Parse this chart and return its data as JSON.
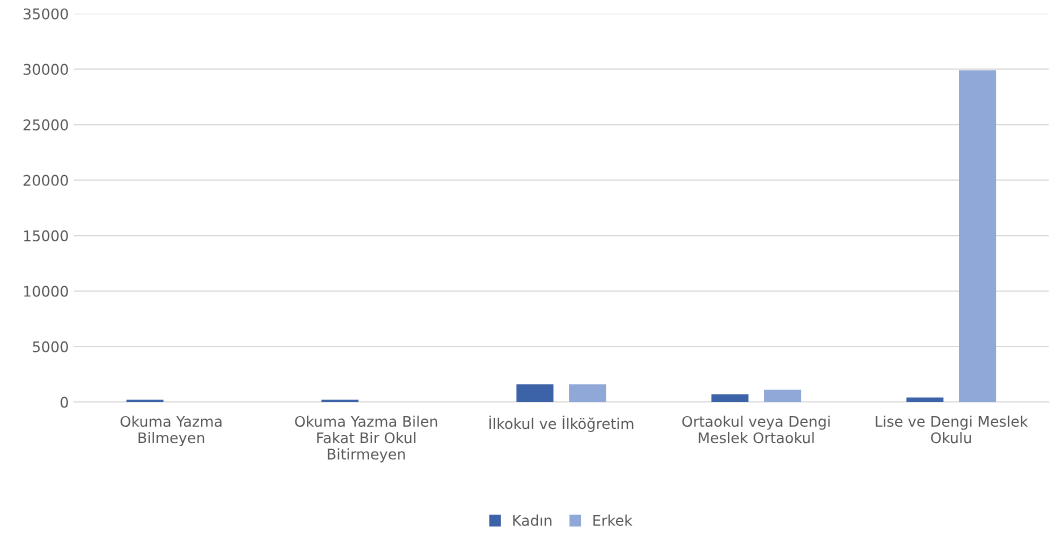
{
  "chart_data": {
    "type": "bar",
    "categories": [
      "Okuma Yazma Bilmeyen",
      "Okuma Yazma Bilen Fakat Bir Okul Bitirmeyen",
      "İlkokul ve İlköğretim",
      "Ortaokul veya Dengi Meslek Ortaokul",
      "Lise ve Dengi Meslek Okulu"
    ],
    "series": [
      {
        "name": "Kadın",
        "color": "#3c62a8",
        "values": [
          200,
          200,
          1600,
          700,
          400
        ]
      },
      {
        "name": "Erkek",
        "color": "#90a8d8",
        "values": [
          0,
          0,
          1600,
          1100,
          29900
        ]
      }
    ],
    "ylim": [
      0,
      35000
    ],
    "yticks": [
      0,
      5000,
      10000,
      15000,
      20000,
      25000,
      30000,
      35000
    ],
    "grid": "y",
    "legend": "bottom"
  }
}
